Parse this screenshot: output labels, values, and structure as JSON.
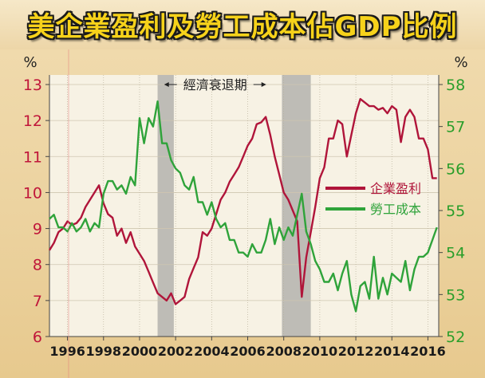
{
  "title": "美企業盈利及勞工成本佔GDP比例",
  "chart_data": {
    "type": "line",
    "left_axis": {
      "unit": "%",
      "ylim": [
        6,
        13
      ],
      "ticks": [
        6,
        7,
        8,
        9,
        10,
        11,
        12,
        13
      ],
      "color": "#c0163a"
    },
    "right_axis": {
      "unit": "%",
      "ylim": [
        52,
        58
      ],
      "ticks": [
        52,
        53,
        54,
        55,
        56,
        57,
        58
      ],
      "color": "#2a9e2a"
    },
    "x_axis": {
      "xlim": [
        1995,
        2016.6
      ],
      "ticks": [
        1996,
        1998,
        2000,
        2002,
        2004,
        2006,
        2008,
        2010,
        2012,
        2014,
        2016
      ]
    },
    "recessions": [
      [
        2001.0,
        2001.9
      ],
      [
        2007.9,
        2009.5
      ]
    ],
    "recession_label": "經濟衰退期",
    "legend": {
      "position": "right"
    },
    "series": [
      {
        "name": "企業盈利",
        "axis": "left",
        "color": "#b0153a",
        "points": [
          [
            1995.0,
            8.4
          ],
          [
            1995.25,
            8.6
          ],
          [
            1995.5,
            8.9
          ],
          [
            1995.75,
            9.0
          ],
          [
            1996.0,
            9.2
          ],
          [
            1996.25,
            9.1
          ],
          [
            1996.5,
            9.15
          ],
          [
            1996.75,
            9.3
          ],
          [
            1997.0,
            9.6
          ],
          [
            1997.25,
            9.8
          ],
          [
            1997.5,
            10.0
          ],
          [
            1997.75,
            10.2
          ],
          [
            1998.0,
            9.7
          ],
          [
            1998.25,
            9.4
          ],
          [
            1998.5,
            9.3
          ],
          [
            1998.75,
            8.8
          ],
          [
            1999.0,
            9.0
          ],
          [
            1999.25,
            8.6
          ],
          [
            1999.5,
            8.9
          ],
          [
            1999.75,
            8.5
          ],
          [
            2000.0,
            8.3
          ],
          [
            2000.25,
            8.1
          ],
          [
            2000.5,
            7.8
          ],
          [
            2000.75,
            7.5
          ],
          [
            2001.0,
            7.2
          ],
          [
            2001.25,
            7.1
          ],
          [
            2001.5,
            7.0
          ],
          [
            2001.75,
            7.2
          ],
          [
            2002.0,
            6.9
          ],
          [
            2002.25,
            7.0
          ],
          [
            2002.5,
            7.1
          ],
          [
            2002.75,
            7.6
          ],
          [
            2003.0,
            7.9
          ],
          [
            2003.25,
            8.2
          ],
          [
            2003.5,
            8.9
          ],
          [
            2003.75,
            8.8
          ],
          [
            2004.0,
            9.0
          ],
          [
            2004.25,
            9.4
          ],
          [
            2004.5,
            9.8
          ],
          [
            2004.75,
            10.0
          ],
          [
            2005.0,
            10.3
          ],
          [
            2005.25,
            10.5
          ],
          [
            2005.5,
            10.7
          ],
          [
            2005.75,
            11.0
          ],
          [
            2006.0,
            11.3
          ],
          [
            2006.25,
            11.5
          ],
          [
            2006.5,
            11.9
          ],
          [
            2006.75,
            11.95
          ],
          [
            2007.0,
            12.1
          ],
          [
            2007.25,
            11.6
          ],
          [
            2007.5,
            11.0
          ],
          [
            2007.75,
            10.5
          ],
          [
            2008.0,
            10.0
          ],
          [
            2008.25,
            9.8
          ],
          [
            2008.5,
            9.5
          ],
          [
            2008.75,
            9.2
          ],
          [
            2009.0,
            7.1
          ],
          [
            2009.25,
            8.2
          ],
          [
            2009.5,
            8.9
          ],
          [
            2009.75,
            9.6
          ],
          [
            2010.0,
            10.4
          ],
          [
            2010.25,
            10.7
          ],
          [
            2010.5,
            11.5
          ],
          [
            2010.75,
            11.5
          ],
          [
            2011.0,
            12.0
          ],
          [
            2011.25,
            11.9
          ],
          [
            2011.5,
            11.0
          ],
          [
            2011.75,
            11.6
          ],
          [
            2012.0,
            12.2
          ],
          [
            2012.25,
            12.6
          ],
          [
            2012.5,
            12.5
          ],
          [
            2012.75,
            12.4
          ],
          [
            2013.0,
            12.4
          ],
          [
            2013.25,
            12.3
          ],
          [
            2013.5,
            12.35
          ],
          [
            2013.75,
            12.2
          ],
          [
            2014.0,
            12.4
          ],
          [
            2014.25,
            12.3
          ],
          [
            2014.5,
            11.4
          ],
          [
            2014.75,
            12.1
          ],
          [
            2015.0,
            12.3
          ],
          [
            2015.25,
            12.1
          ],
          [
            2015.5,
            11.5
          ],
          [
            2015.75,
            11.5
          ],
          [
            2016.0,
            11.2
          ],
          [
            2016.25,
            10.4
          ],
          [
            2016.5,
            10.4
          ]
        ]
      },
      {
        "name": "勞工成本",
        "axis": "right",
        "color": "#2fa33a",
        "points": [
          [
            1995.0,
            54.8
          ],
          [
            1995.25,
            54.9
          ],
          [
            1995.5,
            54.6
          ],
          [
            1995.75,
            54.6
          ],
          [
            1996.0,
            54.5
          ],
          [
            1996.25,
            54.7
          ],
          [
            1996.5,
            54.5
          ],
          [
            1996.75,
            54.6
          ],
          [
            1997.0,
            54.8
          ],
          [
            1997.25,
            54.5
          ],
          [
            1997.5,
            54.7
          ],
          [
            1997.75,
            54.6
          ],
          [
            1998.0,
            55.4
          ],
          [
            1998.25,
            55.7
          ],
          [
            1998.5,
            55.7
          ],
          [
            1998.75,
            55.5
          ],
          [
            1999.0,
            55.6
          ],
          [
            1999.25,
            55.4
          ],
          [
            1999.5,
            55.8
          ],
          [
            1999.75,
            55.6
          ],
          [
            2000.0,
            57.2
          ],
          [
            2000.25,
            56.6
          ],
          [
            2000.5,
            57.2
          ],
          [
            2000.75,
            57.0
          ],
          [
            2001.0,
            57.6
          ],
          [
            2001.25,
            56.6
          ],
          [
            2001.5,
            56.6
          ],
          [
            2001.75,
            56.2
          ],
          [
            2002.0,
            56.0
          ],
          [
            2002.25,
            55.9
          ],
          [
            2002.5,
            55.6
          ],
          [
            2002.75,
            55.5
          ],
          [
            2003.0,
            55.8
          ],
          [
            2003.25,
            55.2
          ],
          [
            2003.5,
            55.2
          ],
          [
            2003.75,
            54.9
          ],
          [
            2004.0,
            55.2
          ],
          [
            2004.25,
            54.8
          ],
          [
            2004.5,
            54.6
          ],
          [
            2004.75,
            54.7
          ],
          [
            2005.0,
            54.3
          ],
          [
            2005.25,
            54.3
          ],
          [
            2005.5,
            54.0
          ],
          [
            2005.75,
            54.0
          ],
          [
            2006.0,
            53.9
          ],
          [
            2006.25,
            54.2
          ],
          [
            2006.5,
            54.0
          ],
          [
            2006.75,
            54.0
          ],
          [
            2007.0,
            54.3
          ],
          [
            2007.25,
            54.8
          ],
          [
            2007.5,
            54.2
          ],
          [
            2007.75,
            54.6
          ],
          [
            2008.0,
            54.3
          ],
          [
            2008.25,
            54.6
          ],
          [
            2008.5,
            54.4
          ],
          [
            2008.75,
            54.9
          ],
          [
            2009.0,
            55.4
          ],
          [
            2009.25,
            54.5
          ],
          [
            2009.5,
            54.2
          ],
          [
            2009.75,
            53.8
          ],
          [
            2010.0,
            53.6
          ],
          [
            2010.25,
            53.3
          ],
          [
            2010.5,
            53.3
          ],
          [
            2010.75,
            53.5
          ],
          [
            2011.0,
            53.1
          ],
          [
            2011.25,
            53.5
          ],
          [
            2011.5,
            53.8
          ],
          [
            2011.75,
            53.0
          ],
          [
            2012.0,
            52.6
          ],
          [
            2012.25,
            53.2
          ],
          [
            2012.5,
            53.3
          ],
          [
            2012.75,
            52.9
          ],
          [
            2013.0,
            53.9
          ],
          [
            2013.25,
            52.9
          ],
          [
            2013.5,
            53.4
          ],
          [
            2013.75,
            53.0
          ],
          [
            2014.0,
            53.5
          ],
          [
            2014.25,
            53.4
          ],
          [
            2014.5,
            53.3
          ],
          [
            2014.75,
            53.8
          ],
          [
            2015.0,
            53.1
          ],
          [
            2015.25,
            53.6
          ],
          [
            2015.5,
            53.9
          ],
          [
            2015.75,
            53.9
          ],
          [
            2016.0,
            54.0
          ],
          [
            2016.25,
            54.3
          ],
          [
            2016.5,
            54.6
          ]
        ]
      }
    ]
  }
}
